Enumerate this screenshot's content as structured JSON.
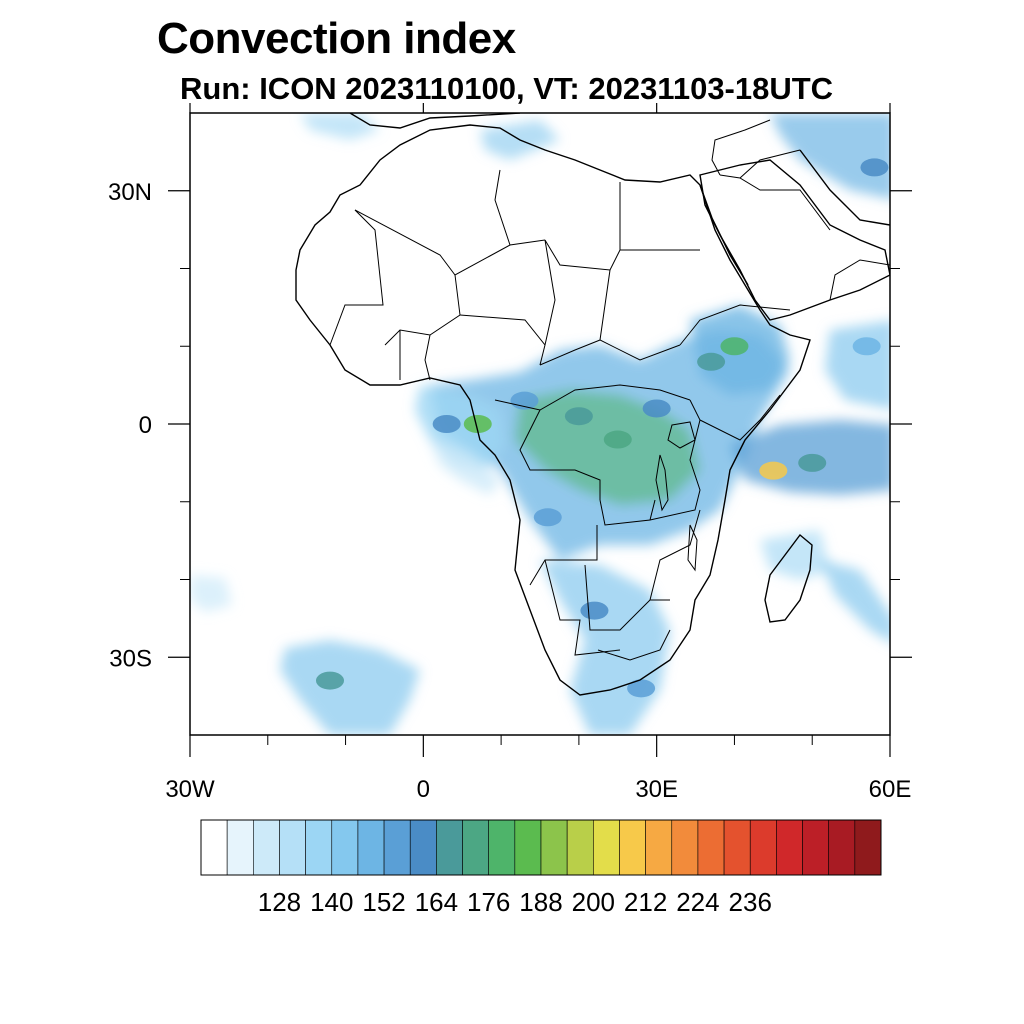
{
  "title": "Convection index",
  "subtitle": "Run: ICON 2023110100,  VT: 20231103-18UTC",
  "map": {
    "lon_range": [
      -30,
      60
    ],
    "lat_range": [
      -40,
      40
    ],
    "x_tick_labels": [
      {
        "lon": -30,
        "label": "30W"
      },
      {
        "lon": 0,
        "label": "0"
      },
      {
        "lon": 30,
        "label": "30E"
      },
      {
        "lon": 60,
        "label": "60E"
      }
    ],
    "y_tick_labels": [
      {
        "lat": 30,
        "label": "30N"
      },
      {
        "lat": 0,
        "label": "0"
      },
      {
        "lat": -30,
        "label": "30S"
      }
    ],
    "minor_lon_ticks": [
      -20,
      -10,
      10,
      20,
      40,
      50
    ],
    "minor_lat_ticks": [
      20,
      10,
      -10,
      -20
    ]
  },
  "colorbar": {
    "colors": [
      "#ffffff",
      "#e6f4fc",
      "#cdeaf9",
      "#b5e0f7",
      "#9cd6f4",
      "#84c8ee",
      "#6db5e4",
      "#5a9fd6",
      "#4a8cc6",
      "#4a9a9a",
      "#4ca784",
      "#4eb46a",
      "#5bbb4f",
      "#8cc44b",
      "#b9cf49",
      "#e3dd4a",
      "#f7c94a",
      "#f6a943",
      "#f28b3b",
      "#ec6d33",
      "#e4522e",
      "#dc3b2c",
      "#d0282a",
      "#bc1f27",
      "#a81b23",
      "#8f1a1c"
    ],
    "tick_labels": [
      "128",
      "140",
      "152",
      "164",
      "176",
      "188",
      "200",
      "212",
      "224",
      "236"
    ]
  },
  "convection_cells": [
    {
      "lon": 3,
      "lat": 0,
      "level": 8
    },
    {
      "lon": 7,
      "lat": 0,
      "level": 12
    },
    {
      "lon": 13,
      "lat": 3,
      "level": 7
    },
    {
      "lon": 20,
      "lat": 1,
      "level": 9
    },
    {
      "lon": 25,
      "lat": -2,
      "level": 10
    },
    {
      "lon": 30,
      "lat": 2,
      "level": 8
    },
    {
      "lon": 37,
      "lat": 8,
      "level": 9
    },
    {
      "lon": 40,
      "lat": 10,
      "level": 11
    },
    {
      "lon": 45,
      "lat": -6,
      "level": 16
    },
    {
      "lon": 50,
      "lat": -5,
      "level": 9
    },
    {
      "lon": 16,
      "lat": -12,
      "level": 7
    },
    {
      "lon": 22,
      "lat": -24,
      "level": 8
    },
    {
      "lon": 28,
      "lat": -34,
      "level": 7
    },
    {
      "lon": -12,
      "lat": -33,
      "level": 9
    },
    {
      "lon": 58,
      "lat": 33,
      "level": 8
    },
    {
      "lon": 57,
      "lat": 10,
      "level": 6
    }
  ]
}
